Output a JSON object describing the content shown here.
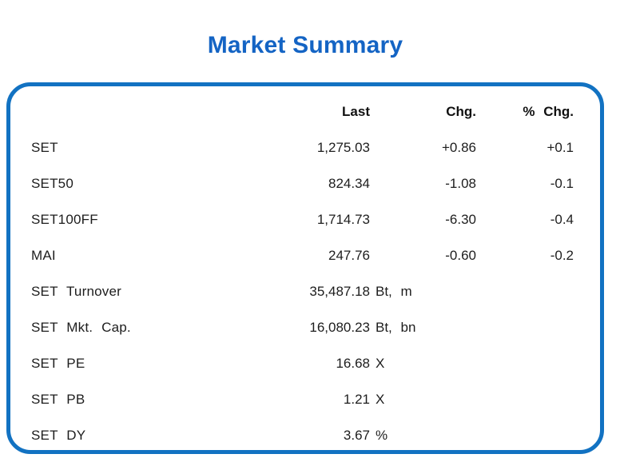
{
  "title": "Market Summary",
  "colors": {
    "title_blue": "#1464C4",
    "border_blue": "#1272C2",
    "text": "#1D1D1D"
  },
  "table": {
    "columns": {
      "last": "Last",
      "chg": "Chg.",
      "pct_chg": "% Chg."
    },
    "rows": [
      {
        "label": "SET",
        "last": "1,275.03",
        "suffix": "",
        "chg": "+0.86",
        "pct": "+0.1"
      },
      {
        "label": "SET50",
        "last": "824.34",
        "suffix": "",
        "chg": "-1.08",
        "pct": "-0.1"
      },
      {
        "label": "SET100FF",
        "last": "1,714.73",
        "suffix": "",
        "chg": "-6.30",
        "pct": "-0.4"
      },
      {
        "label": "MAI",
        "last": "247.76",
        "suffix": "",
        "chg": "-0.60",
        "pct": "-0.2"
      },
      {
        "label": "SET Turnover",
        "last": "35,487.18",
        "suffix": "Bt, m",
        "chg": "",
        "pct": ""
      },
      {
        "label": "SET Mkt. Cap.",
        "last": "16,080.23",
        "suffix": "Bt, bn",
        "chg": "",
        "pct": ""
      },
      {
        "label": "SET PE",
        "last": "16.68",
        "suffix": "X",
        "chg": "",
        "pct": ""
      },
      {
        "label": "SET PB",
        "last": "1.21",
        "suffix": "X",
        "chg": "",
        "pct": ""
      },
      {
        "label": "SET DY",
        "last": "3.67",
        "suffix": "%",
        "chg": "",
        "pct": ""
      }
    ]
  }
}
